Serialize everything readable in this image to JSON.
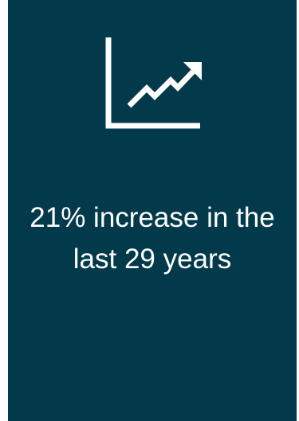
{
  "card": {
    "background": "#023a4b",
    "icon": "trending-up-chart-icon",
    "stat_text": "21% increase in the last 29 years"
  }
}
